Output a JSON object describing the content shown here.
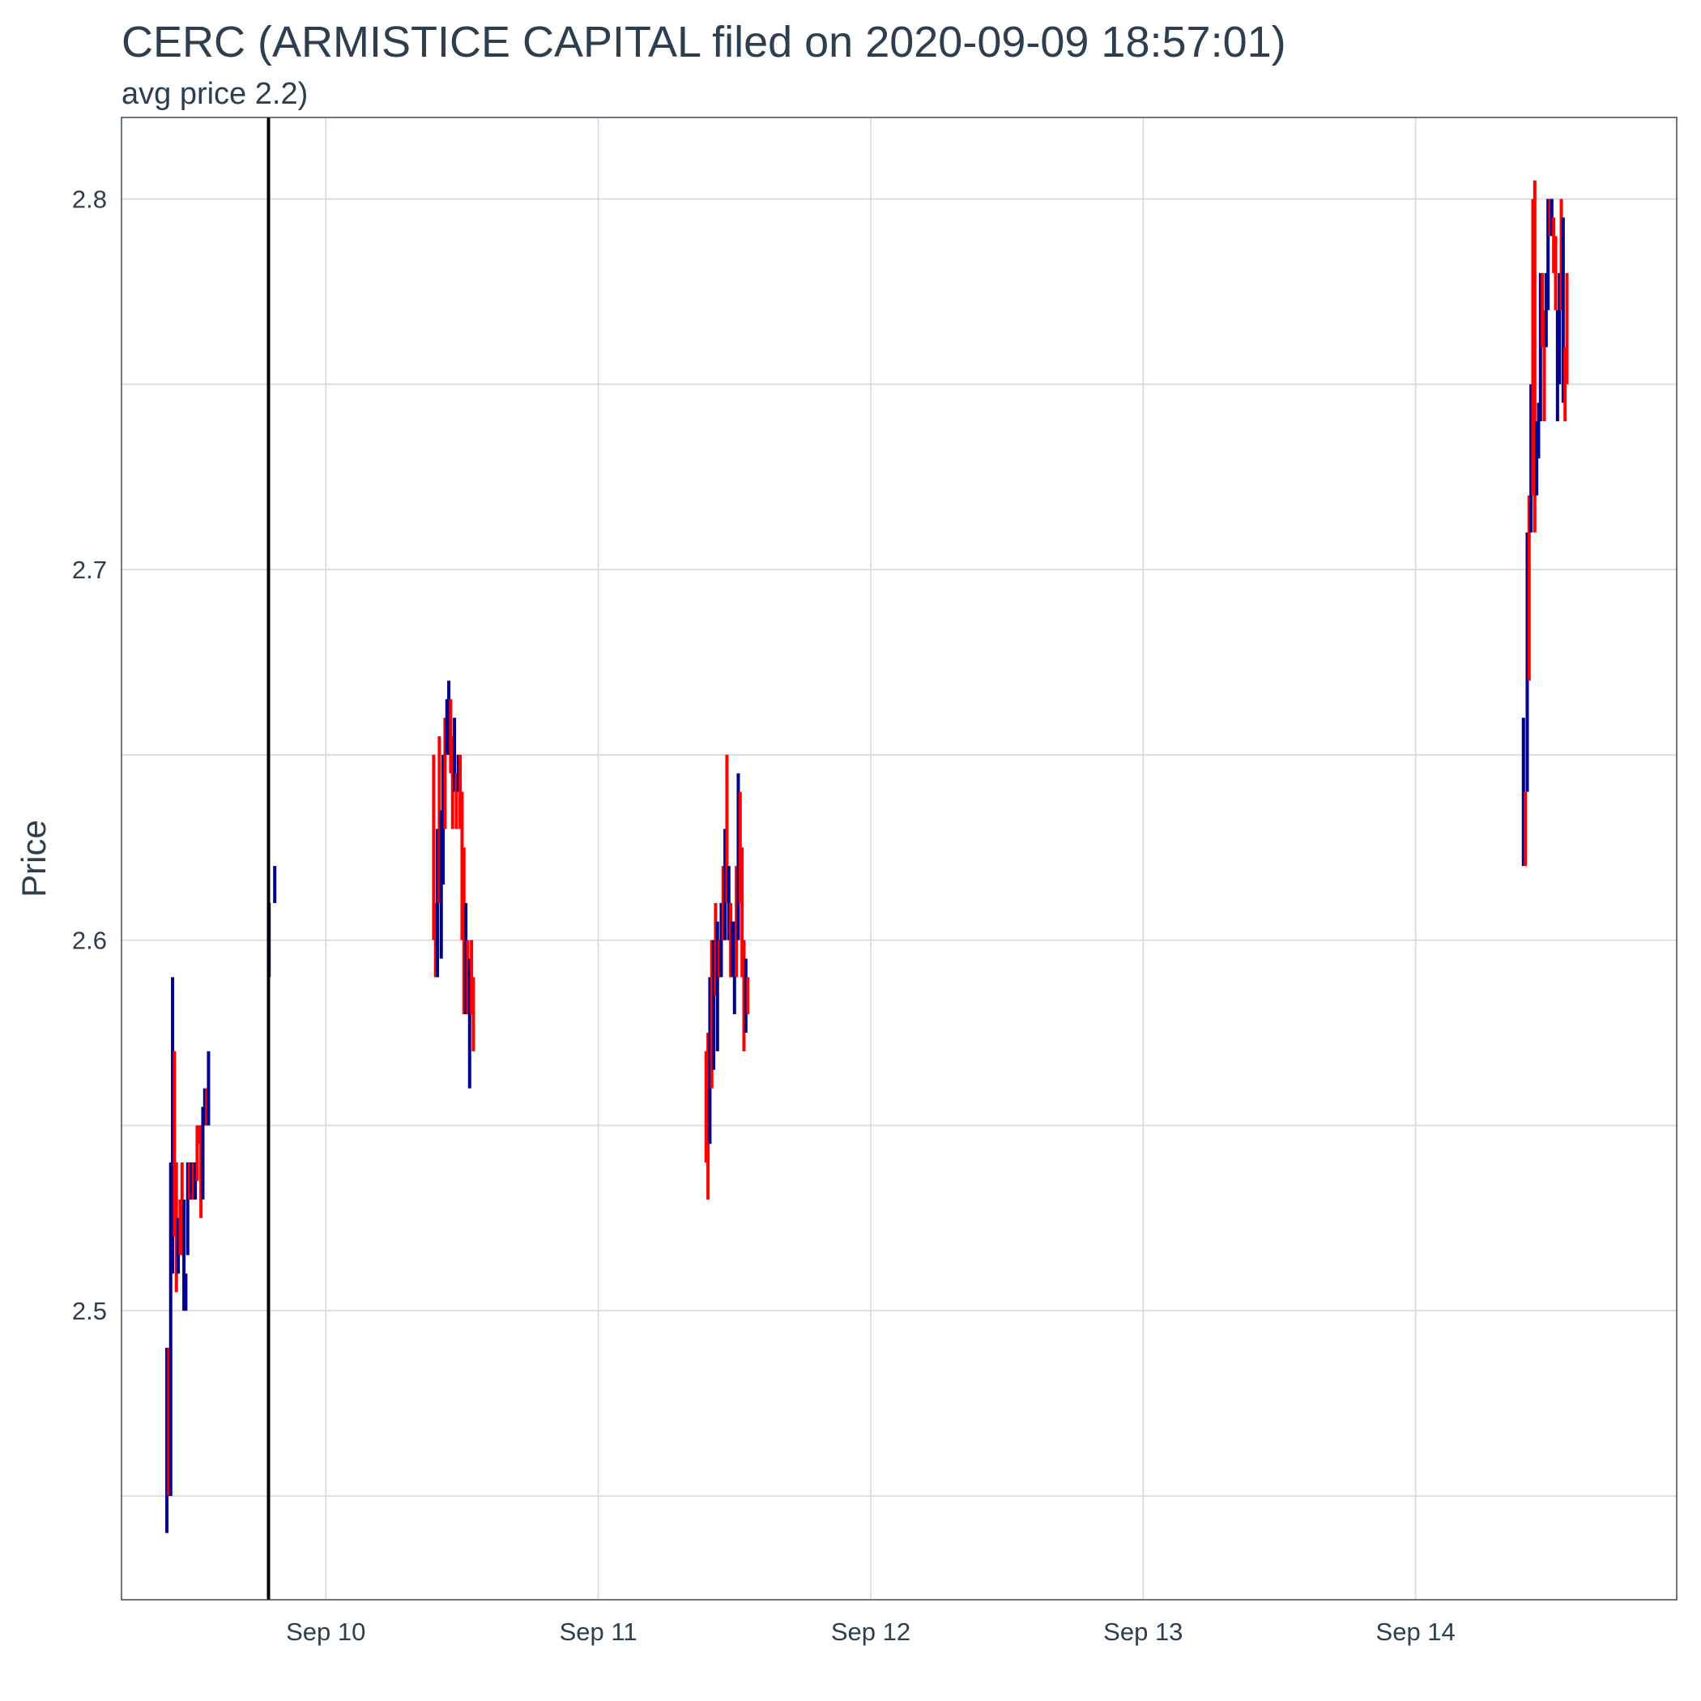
{
  "chart_data": {
    "type": "ohlc",
    "title": "CERC (ARMISTICE CAPITAL filed on 2020-09-09 18:57:01)",
    "subtitle": "avg price 2.2)",
    "xlabel": "",
    "ylabel": "Price",
    "x_range": [
      "2020-09-09T06:00:00",
      "2020-09-14T23:00:00"
    ],
    "ylim": [
      2.422,
      2.822
    ],
    "yticks": [
      2.5,
      2.6,
      2.7,
      2.8
    ],
    "ytick_labels": [
      "2.5",
      "2.6",
      "2.7",
      "2.8"
    ],
    "xticks": [
      "2020-09-10",
      "2020-09-11",
      "2020-09-12",
      "2020-09-13",
      "2020-09-14"
    ],
    "xtick_labels": [
      "Sep 10",
      "Sep 11",
      "Sep 12",
      "Sep 13",
      "Sep 14"
    ],
    "grid": true,
    "legend": "none",
    "filing_time": "2020-09-09T18:57:01",
    "colors": {
      "up": "#00008b",
      "down": "#ff0000",
      "filing_line": "#000000"
    },
    "bars": [
      {
        "t": "2020-09-09T10:00",
        "low": 2.44,
        "high": 2.49,
        "dir": "up"
      },
      {
        "t": "2020-09-09T10:10",
        "low": 2.45,
        "high": 2.49,
        "dir": "down"
      },
      {
        "t": "2020-09-09T10:20",
        "low": 2.45,
        "high": 2.54,
        "dir": "up"
      },
      {
        "t": "2020-09-09T10:30",
        "low": 2.51,
        "high": 2.59,
        "dir": "up"
      },
      {
        "t": "2020-09-09T10:40",
        "low": 2.52,
        "high": 2.57,
        "dir": "down"
      },
      {
        "t": "2020-09-09T10:50",
        "low": 2.505,
        "high": 2.54,
        "dir": "down"
      },
      {
        "t": "2020-09-09T11:00",
        "low": 2.51,
        "high": 2.525,
        "dir": "up"
      },
      {
        "t": "2020-09-09T11:10",
        "low": 2.515,
        "high": 2.53,
        "dir": "down"
      },
      {
        "t": "2020-09-09T11:20",
        "low": 2.515,
        "high": 2.54,
        "dir": "down"
      },
      {
        "t": "2020-09-09T11:30",
        "low": 2.5,
        "high": 2.53,
        "dir": "up"
      },
      {
        "t": "2020-09-09T11:40",
        "low": 2.5,
        "high": 2.51,
        "dir": "up"
      },
      {
        "t": "2020-09-09T11:50",
        "low": 2.515,
        "high": 2.54,
        "dir": "up"
      },
      {
        "t": "2020-09-09T12:00",
        "low": 2.53,
        "high": 2.54,
        "dir": "down"
      },
      {
        "t": "2020-09-09T12:10",
        "low": 2.53,
        "high": 2.54,
        "dir": "up"
      },
      {
        "t": "2020-09-09T12:20",
        "low": 2.53,
        "high": 2.54,
        "dir": "down"
      },
      {
        "t": "2020-09-09T12:30",
        "low": 2.53,
        "high": 2.54,
        "dir": "up"
      },
      {
        "t": "2020-09-09T12:40",
        "low": 2.535,
        "high": 2.55,
        "dir": "down"
      },
      {
        "t": "2020-09-09T12:50",
        "low": 2.545,
        "high": 2.55,
        "dir": "down"
      },
      {
        "t": "2020-09-09T13:00",
        "low": 2.525,
        "high": 2.55,
        "dir": "down"
      },
      {
        "t": "2020-09-09T13:10",
        "low": 2.53,
        "high": 2.555,
        "dir": "up"
      },
      {
        "t": "2020-09-09T13:20",
        "low": 2.55,
        "high": 2.56,
        "dir": "up"
      },
      {
        "t": "2020-09-09T13:30",
        "low": 2.55,
        "high": 2.56,
        "dir": "down"
      },
      {
        "t": "2020-09-09T13:40",
        "low": 2.55,
        "high": 2.57,
        "dir": "up"
      },
      {
        "t": "2020-09-09T19:00",
        "low": 2.59,
        "high": 2.61,
        "dir": "up"
      },
      {
        "t": "2020-09-09T19:30",
        "low": 2.61,
        "high": 2.62,
        "dir": "up"
      },
      {
        "t": "2020-09-10T09:30",
        "low": 2.6,
        "high": 2.65,
        "dir": "down"
      },
      {
        "t": "2020-09-10T09:40",
        "low": 2.59,
        "high": 2.61,
        "dir": "down"
      },
      {
        "t": "2020-09-10T09:50",
        "low": 2.59,
        "high": 2.63,
        "dir": "up"
      },
      {
        "t": "2020-09-10T10:00",
        "low": 2.61,
        "high": 2.655,
        "dir": "down"
      },
      {
        "t": "2020-09-10T10:10",
        "low": 2.595,
        "high": 2.635,
        "dir": "up"
      },
      {
        "t": "2020-09-10T10:20",
        "low": 2.615,
        "high": 2.65,
        "dir": "up"
      },
      {
        "t": "2020-09-10T10:30",
        "low": 2.63,
        "high": 2.66,
        "dir": "down"
      },
      {
        "t": "2020-09-10T10:40",
        "low": 2.65,
        "high": 2.665,
        "dir": "up"
      },
      {
        "t": "2020-09-10T10:50",
        "low": 2.65,
        "high": 2.67,
        "dir": "up"
      },
      {
        "t": "2020-09-10T11:00",
        "low": 2.645,
        "high": 2.665,
        "dir": "down"
      },
      {
        "t": "2020-09-10T11:10",
        "low": 2.63,
        "high": 2.655,
        "dir": "down"
      },
      {
        "t": "2020-09-10T11:20",
        "low": 2.64,
        "high": 2.66,
        "dir": "up"
      },
      {
        "t": "2020-09-10T11:30",
        "low": 2.63,
        "high": 2.645,
        "dir": "down"
      },
      {
        "t": "2020-09-10T11:40",
        "low": 2.64,
        "high": 2.65,
        "dir": "up"
      },
      {
        "t": "2020-09-10T11:50",
        "low": 2.63,
        "high": 2.65,
        "dir": "down"
      },
      {
        "t": "2020-09-10T12:00",
        "low": 2.6,
        "high": 2.64,
        "dir": "down"
      },
      {
        "t": "2020-09-10T12:10",
        "low": 2.58,
        "high": 2.625,
        "dir": "down"
      },
      {
        "t": "2020-09-10T12:20",
        "low": 2.58,
        "high": 2.61,
        "dir": "up"
      },
      {
        "t": "2020-09-10T12:30",
        "low": 2.58,
        "high": 2.6,
        "dir": "down"
      },
      {
        "t": "2020-09-10T12:40",
        "low": 2.56,
        "high": 2.595,
        "dir": "up"
      },
      {
        "t": "2020-09-10T12:50",
        "low": 2.58,
        "high": 2.6,
        "dir": "down"
      },
      {
        "t": "2020-09-10T13:00",
        "low": 2.57,
        "high": 2.59,
        "dir": "down"
      },
      {
        "t": "2020-09-11T09:30",
        "low": 2.54,
        "high": 2.57,
        "dir": "down"
      },
      {
        "t": "2020-09-11T09:40",
        "low": 2.53,
        "high": 2.575,
        "dir": "down"
      },
      {
        "t": "2020-09-11T09:50",
        "low": 2.545,
        "high": 2.59,
        "dir": "up"
      },
      {
        "t": "2020-09-11T10:00",
        "low": 2.56,
        "high": 2.6,
        "dir": "down"
      },
      {
        "t": "2020-09-11T10:10",
        "low": 2.565,
        "high": 2.6,
        "dir": "up"
      },
      {
        "t": "2020-09-11T10:20",
        "low": 2.585,
        "high": 2.61,
        "dir": "down"
      },
      {
        "t": "2020-09-11T10:30",
        "low": 2.57,
        "high": 2.605,
        "dir": "up"
      },
      {
        "t": "2020-09-11T10:40",
        "low": 2.59,
        "high": 2.6,
        "dir": "down"
      },
      {
        "t": "2020-09-11T10:50",
        "low": 2.59,
        "high": 2.61,
        "dir": "up"
      },
      {
        "t": "2020-09-11T11:00",
        "low": 2.6,
        "high": 2.62,
        "dir": "down"
      },
      {
        "t": "2020-09-11T11:10",
        "low": 2.6,
        "high": 2.63,
        "dir": "up"
      },
      {
        "t": "2020-09-11T11:20",
        "low": 2.61,
        "high": 2.65,
        "dir": "down"
      },
      {
        "t": "2020-09-11T11:30",
        "low": 2.6,
        "high": 2.62,
        "dir": "up"
      },
      {
        "t": "2020-09-11T11:40",
        "low": 2.59,
        "high": 2.61,
        "dir": "down"
      },
      {
        "t": "2020-09-11T11:50",
        "low": 2.59,
        "high": 2.605,
        "dir": "up"
      },
      {
        "t": "2020-09-11T12:00",
        "low": 2.58,
        "high": 2.605,
        "dir": "up"
      },
      {
        "t": "2020-09-11T12:10",
        "low": 2.59,
        "high": 2.62,
        "dir": "down"
      },
      {
        "t": "2020-09-11T12:20",
        "low": 2.6,
        "high": 2.645,
        "dir": "up"
      },
      {
        "t": "2020-09-11T12:30",
        "low": 2.61,
        "high": 2.64,
        "dir": "down"
      },
      {
        "t": "2020-09-11T12:40",
        "low": 2.59,
        "high": 2.625,
        "dir": "down"
      },
      {
        "t": "2020-09-11T12:50",
        "low": 2.57,
        "high": 2.6,
        "dir": "down"
      },
      {
        "t": "2020-09-11T13:00",
        "low": 2.575,
        "high": 2.595,
        "dir": "up"
      },
      {
        "t": "2020-09-11T13:10",
        "low": 2.58,
        "high": 2.59,
        "dir": "down"
      },
      {
        "t": "2020-09-14T09:30",
        "low": 2.62,
        "high": 2.66,
        "dir": "up"
      },
      {
        "t": "2020-09-14T09:40",
        "low": 2.62,
        "high": 2.64,
        "dir": "down"
      },
      {
        "t": "2020-09-14T09:50",
        "low": 2.64,
        "high": 2.71,
        "dir": "up"
      },
      {
        "t": "2020-09-14T10:00",
        "low": 2.67,
        "high": 2.72,
        "dir": "down"
      },
      {
        "t": "2020-09-14T10:10",
        "low": 2.71,
        "high": 2.75,
        "dir": "up"
      },
      {
        "t": "2020-09-14T10:20",
        "low": 2.72,
        "high": 2.8,
        "dir": "down"
      },
      {
        "t": "2020-09-14T10:30",
        "low": 2.71,
        "high": 2.805,
        "dir": "down"
      },
      {
        "t": "2020-09-14T10:40",
        "low": 2.72,
        "high": 2.74,
        "dir": "up"
      },
      {
        "t": "2020-09-14T10:50",
        "low": 2.73,
        "high": 2.745,
        "dir": "up"
      },
      {
        "t": "2020-09-14T11:00",
        "low": 2.74,
        "high": 2.78,
        "dir": "up"
      },
      {
        "t": "2020-09-14T11:10",
        "low": 2.76,
        "high": 2.78,
        "dir": "down"
      },
      {
        "t": "2020-09-14T11:20",
        "low": 2.74,
        "high": 2.77,
        "dir": "down"
      },
      {
        "t": "2020-09-14T11:30",
        "low": 2.76,
        "high": 2.78,
        "dir": "up"
      },
      {
        "t": "2020-09-14T11:40",
        "low": 2.77,
        "high": 2.8,
        "dir": "up"
      },
      {
        "t": "2020-09-14T11:50",
        "low": 2.79,
        "high": 2.8,
        "dir": "down"
      },
      {
        "t": "2020-09-14T12:00",
        "low": 2.79,
        "high": 2.8,
        "dir": "up"
      },
      {
        "t": "2020-09-14T12:10",
        "low": 2.78,
        "high": 2.795,
        "dir": "down"
      },
      {
        "t": "2020-09-14T12:20",
        "low": 2.77,
        "high": 2.79,
        "dir": "down"
      },
      {
        "t": "2020-09-14T12:30",
        "low": 2.74,
        "high": 2.77,
        "dir": "up"
      },
      {
        "t": "2020-09-14T12:40",
        "low": 2.75,
        "high": 2.78,
        "dir": "up"
      },
      {
        "t": "2020-09-14T12:50",
        "low": 2.77,
        "high": 2.8,
        "dir": "down"
      },
      {
        "t": "2020-09-14T13:00",
        "low": 2.745,
        "high": 2.795,
        "dir": "up"
      },
      {
        "t": "2020-09-14T13:10",
        "low": 2.74,
        "high": 2.76,
        "dir": "down"
      },
      {
        "t": "2020-09-14T13:20",
        "low": 2.75,
        "high": 2.78,
        "dir": "down"
      }
    ]
  }
}
